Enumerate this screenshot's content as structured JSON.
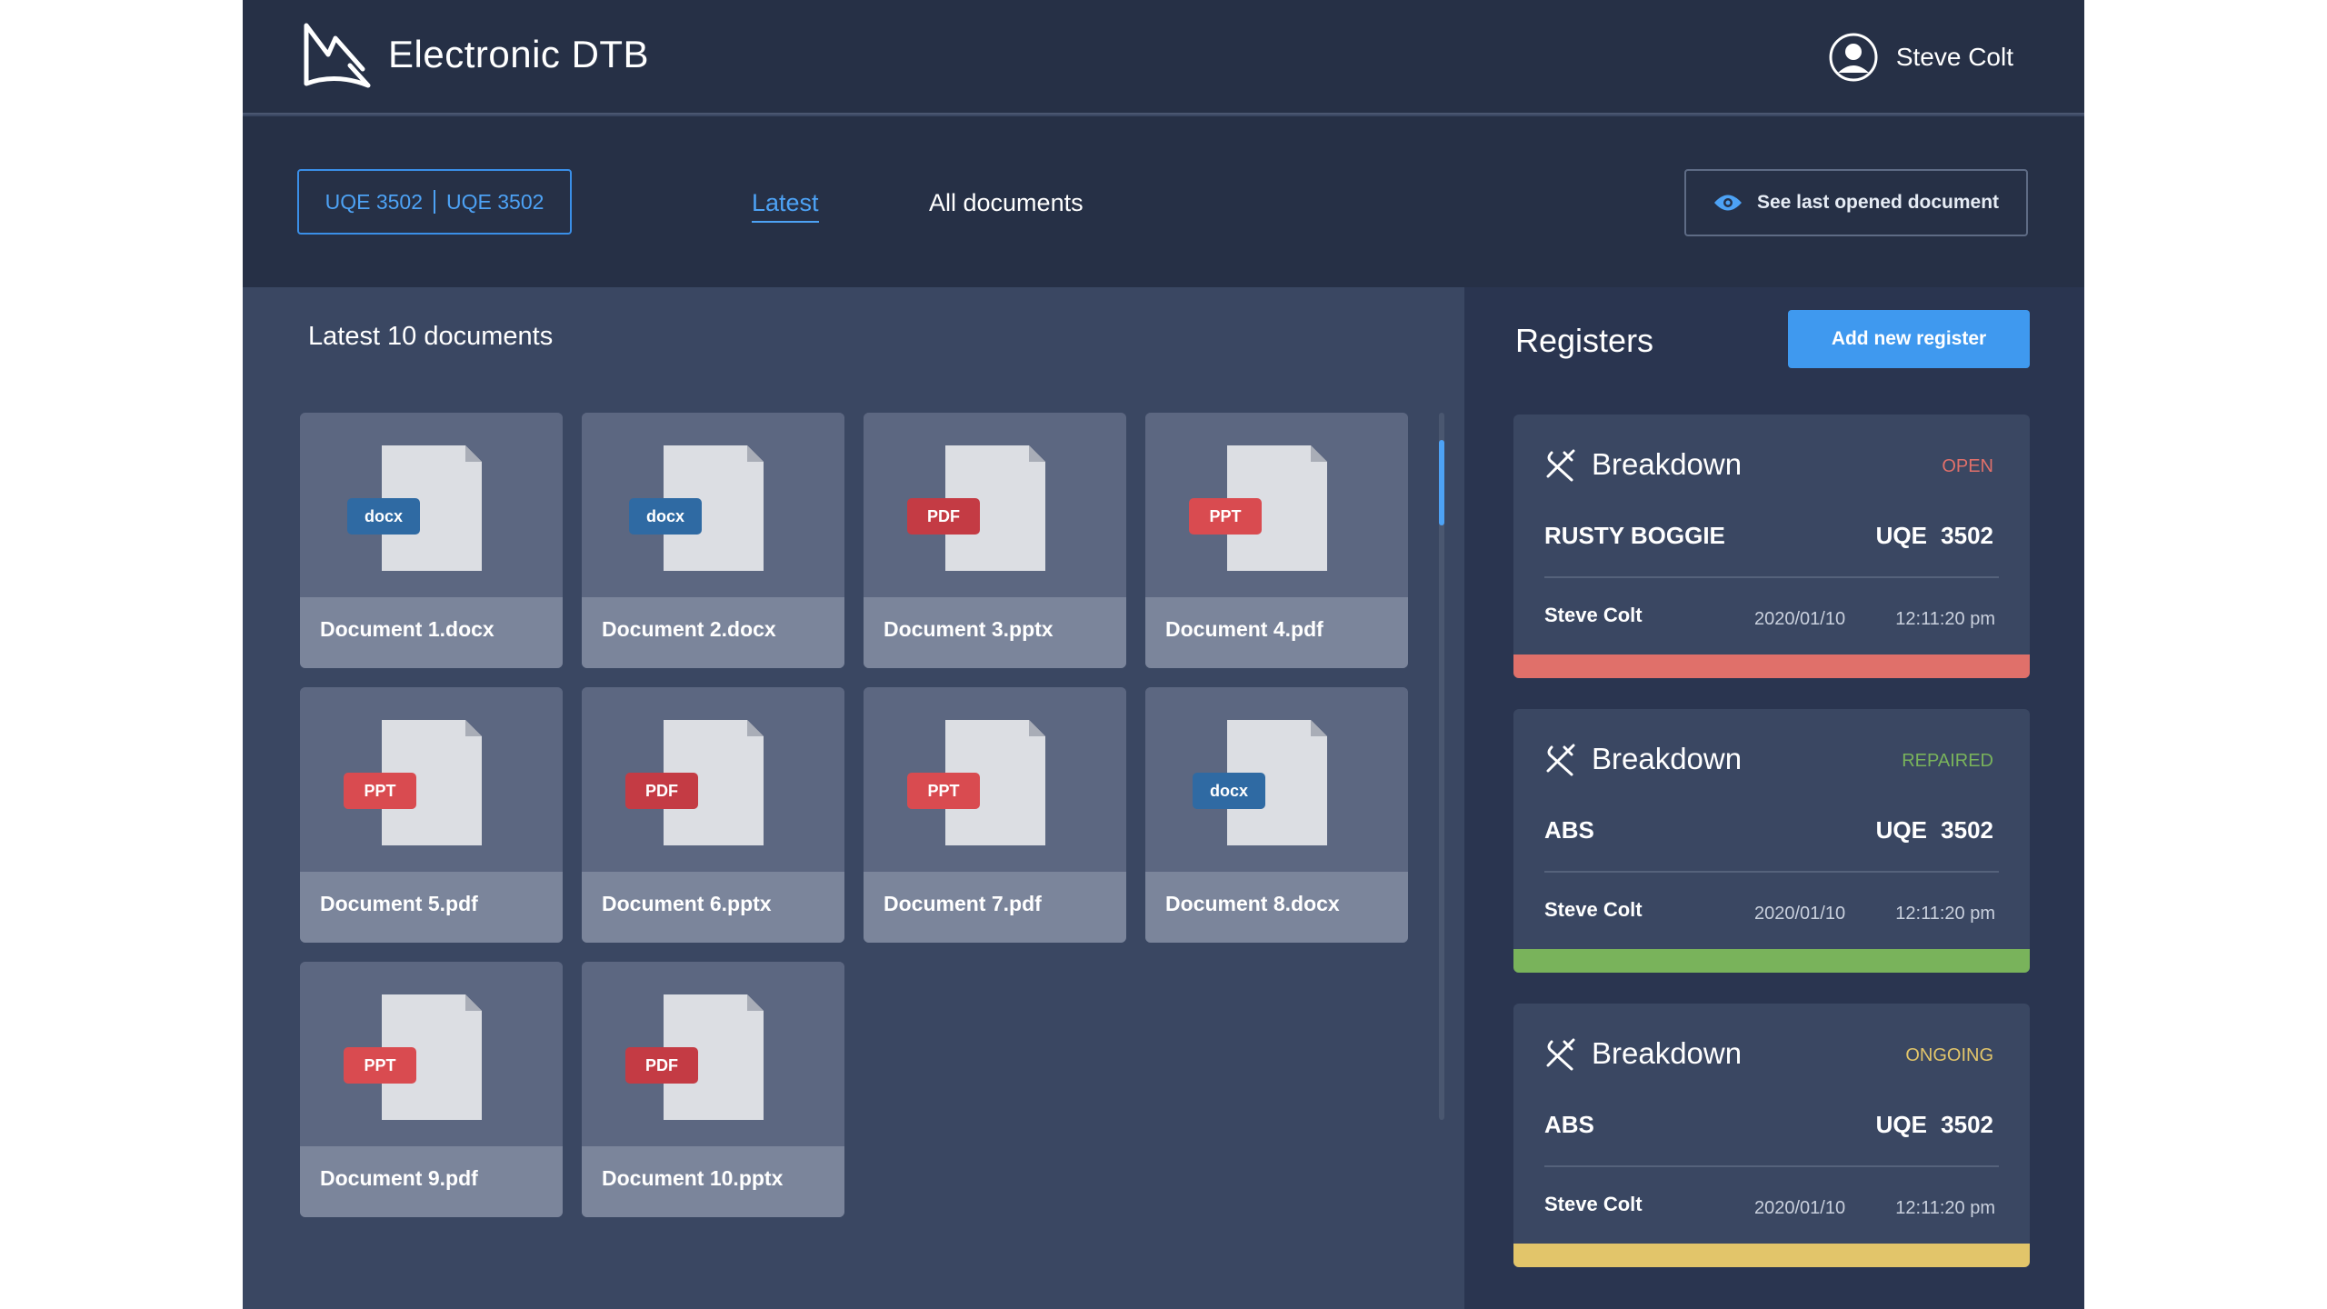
{
  "header": {
    "app_title": "Electronic DTB",
    "user_name": "Steve Colt"
  },
  "toolbar": {
    "vehicle_select": {
      "left": "UQE 3502",
      "right": "UQE 3502"
    },
    "tabs": [
      {
        "label": "Latest",
        "active": true
      },
      {
        "label": "All documents",
        "active": false
      }
    ],
    "last_opened_label": "See last opened document"
  },
  "documents": {
    "heading": "Latest 10 documents",
    "items": [
      {
        "name": "Document 1.docx",
        "badge": "docx",
        "kind": "docx"
      },
      {
        "name": "Document 2.docx",
        "badge": "docx",
        "kind": "docx"
      },
      {
        "name": "Document 3.pptx",
        "badge": "PDF",
        "kind": "pdf"
      },
      {
        "name": "Document 4.pdf",
        "badge": "PPT",
        "kind": "ppt"
      },
      {
        "name": "Document 5.pdf",
        "badge": "PPT",
        "kind": "ppt"
      },
      {
        "name": "Document 6.pptx",
        "badge": "PDF",
        "kind": "pdf"
      },
      {
        "name": "Document 7.pdf",
        "badge": "PPT",
        "kind": "ppt"
      },
      {
        "name": "Document 8.docx",
        "badge": "docx",
        "kind": "docx"
      },
      {
        "name": "Document 9.pdf",
        "badge": "PPT",
        "kind": "ppt"
      },
      {
        "name": "Document 10.pptx",
        "badge": "PDF",
        "kind": "pdf"
      }
    ]
  },
  "registers": {
    "title": "Registers",
    "add_label": "Add new register",
    "items": [
      {
        "type": "Breakdown",
        "status": "OPEN",
        "status_color": "#e0706a",
        "component": "RUSTY BOGGIE",
        "vehicle": "UQE 3502",
        "user": "Steve Colt",
        "date": "2020/01/10",
        "time": "12:11:20 pm"
      },
      {
        "type": "Breakdown",
        "status": "REPAIRED",
        "status_color": "#79b35b",
        "component": "ABS",
        "vehicle": "UQE 3502",
        "user": "Steve Colt",
        "date": "2020/01/10",
        "time": "12:11:20 pm"
      },
      {
        "type": "Breakdown",
        "status": "ONGOING",
        "status_color": "#e2c56a",
        "component": "ABS",
        "vehicle": "UQE 3502",
        "user": "Steve Colt",
        "date": "2020/01/10",
        "time": "12:11:20 pm"
      }
    ]
  },
  "colors": {
    "accent": "#4da2f5",
    "status_open": "#e0706a",
    "status_repaired": "#79b35b",
    "status_ongoing": "#e2c56a"
  }
}
